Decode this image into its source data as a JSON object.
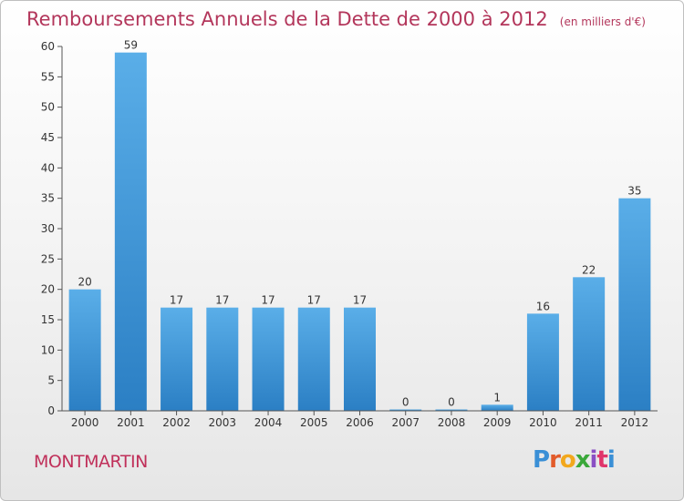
{
  "title": "Remboursements Annuels de la Dette de 2000 à 2012",
  "unit": "(en milliers d'€)",
  "commune": "MONTMARTIN",
  "logo": {
    "letters": [
      "P",
      "r",
      "o",
      "x",
      "i",
      "t",
      "i"
    ],
    "colors": [
      "#3a8fd6",
      "#e25b2a",
      "#f2a81d",
      "#3aa83a",
      "#8a4fc4",
      "#e0356b",
      "#3a8fd6"
    ]
  },
  "colors": {
    "bar_light": "#5aaee8",
    "bar_dark": "#2b7fc4",
    "axis": "#555555"
  },
  "chart_data": {
    "type": "bar",
    "categories": [
      "2000",
      "2001",
      "2002",
      "2003",
      "2004",
      "2005",
      "2006",
      "2007",
      "2008",
      "2009",
      "2010",
      "2011",
      "2012"
    ],
    "values": [
      20,
      59,
      17,
      17,
      17,
      17,
      17,
      0,
      0,
      1,
      16,
      22,
      35
    ],
    "ylim": [
      0,
      60
    ],
    "yticks": [
      0,
      5,
      10,
      15,
      20,
      25,
      30,
      35,
      40,
      45,
      50,
      55,
      60
    ],
    "grid": false
  }
}
